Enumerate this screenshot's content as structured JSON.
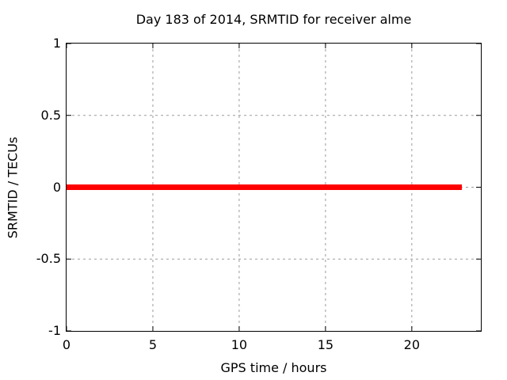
{
  "chart_data": {
    "type": "line",
    "title": "Day 183 of 2014, SRMTID for receiver alme",
    "xlabel": "GPS time / hours",
    "ylabel": "SRMTID / TECUs",
    "xlim": [
      0,
      24
    ],
    "ylim": [
      -1,
      1
    ],
    "xticks": [
      {
        "value": 0,
        "label": "0"
      },
      {
        "value": 5,
        "label": "5"
      },
      {
        "value": 10,
        "label": "10"
      },
      {
        "value": 15,
        "label": "15"
      },
      {
        "value": 20,
        "label": "20"
      }
    ],
    "yticks": [
      {
        "value": 1,
        "label": "1"
      },
      {
        "value": 0.5,
        "label": "0.5"
      },
      {
        "value": 0,
        "label": "0"
      },
      {
        "value": -0.5,
        "label": "-0.5"
      },
      {
        "value": -1,
        "label": "-1"
      }
    ],
    "grid": true,
    "legend": "none",
    "series": [
      {
        "name": "SRMTID",
        "color": "#ff0000",
        "line_width": 7,
        "points": [
          [
            0,
            0
          ],
          [
            22.9,
            0
          ]
        ]
      }
    ]
  },
  "colors": {
    "background": "#ffffff",
    "axis": "#000000",
    "grid": "#9b9b9b",
    "text": "#000000",
    "series": "#ff0000"
  }
}
